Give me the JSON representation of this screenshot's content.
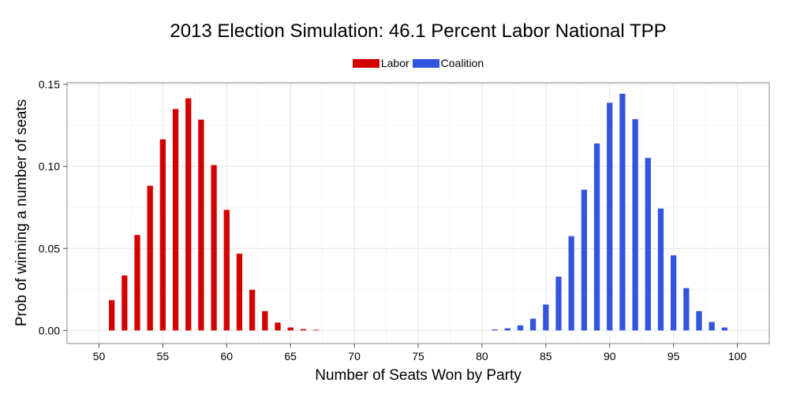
{
  "chart_data": {
    "type": "bar",
    "title": "2013 Election Simulation: 46.1 Percent Labor National TPP",
    "xlabel": "Number of Seats Won by Party",
    "ylabel": "Prob of winning a number of seats",
    "xlim": [
      47.5,
      102.5
    ],
    "ylim": [
      -0.008,
      0.151
    ],
    "xticks": [
      50,
      55,
      60,
      65,
      70,
      75,
      80,
      85,
      90,
      95,
      100
    ],
    "yticks": [
      0.0,
      0.05,
      0.1,
      0.15
    ],
    "ytick_labels": [
      "0.00",
      "0.05",
      "0.10",
      "0.15"
    ],
    "grid": true,
    "legend_position": "top",
    "series": [
      {
        "name": "Labor",
        "color": "#d40000",
        "x": [
          51,
          52,
          53,
          54,
          55,
          56,
          57,
          58,
          59,
          60,
          61,
          62,
          63,
          64,
          65,
          66,
          67
        ],
        "values": [
          0.0185,
          0.0335,
          0.0582,
          0.0882,
          0.1165,
          0.135,
          0.1415,
          0.1285,
          0.1008,
          0.0735,
          0.0468,
          0.0248,
          0.0118,
          0.0048,
          0.0018,
          0.0008,
          0.0004
        ]
      },
      {
        "name": "Coalition",
        "color": "#3355dd",
        "x": [
          81,
          82,
          83,
          84,
          85,
          86,
          87,
          88,
          89,
          90,
          91,
          92,
          93,
          94,
          95,
          96,
          97,
          98,
          99
        ],
        "values": [
          0.0006,
          0.0013,
          0.0031,
          0.0072,
          0.0158,
          0.0328,
          0.0575,
          0.0858,
          0.114,
          0.1388,
          0.1443,
          0.1288,
          0.1052,
          0.0743,
          0.0458,
          0.0258,
          0.0118,
          0.0052,
          0.0018
        ]
      }
    ]
  }
}
